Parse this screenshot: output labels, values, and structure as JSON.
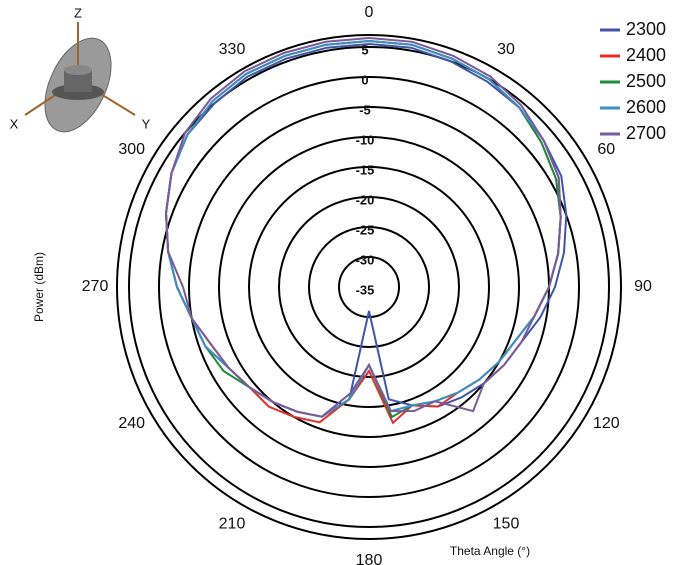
{
  "chart_data": {
    "type": "polar",
    "rlabel": "Power (dBm)",
    "thetalabel": "Theta Angle (°)",
    "inset_labels": {
      "x": "X",
      "y": "Y",
      "z": "Z"
    },
    "theta": [
      0,
      10,
      20,
      30,
      40,
      50,
      60,
      70,
      80,
      90,
      100,
      110,
      120,
      130,
      140,
      150,
      160,
      170,
      180,
      190,
      200,
      210,
      220,
      230,
      240,
      250,
      260,
      270,
      280,
      290,
      300,
      310,
      320,
      330,
      340,
      350
    ],
    "theta_direction": "clockwise",
    "theta_zero": "top",
    "thetaticks": [
      0,
      30,
      60,
      90,
      120,
      150,
      180,
      210,
      240,
      270,
      300,
      330
    ],
    "rlim": [
      -35,
      7
    ],
    "rticks": [
      -35,
      -30,
      -25,
      -20,
      -15,
      -10,
      -5,
      0,
      5
    ],
    "grid": true,
    "legend": "upper right",
    "series": [
      {
        "name": "2300",
        "color": "#3f56a8",
        "values": [
          5.5,
          5.5,
          5,
          4.5,
          4,
          3,
          2,
          0,
          -2,
          -4,
          -6,
          -8,
          -9,
          -10,
          -11,
          -12,
          -14,
          -16,
          -31,
          -16,
          -12,
          -11,
          -10,
          -9,
          -8,
          -6,
          -5,
          -3,
          -1,
          1,
          3,
          4.5,
          5,
          5.5,
          5.5,
          5.5
        ]
      },
      {
        "name": "2400",
        "color": "#e0312b",
        "values": [
          6,
          6,
          5.5,
          5,
          4,
          2.5,
          1,
          -1,
          -3,
          -5,
          -7,
          -9,
          -10,
          -11,
          -12,
          -12,
          -14,
          -12,
          -21,
          -16,
          -11,
          -10,
          -9,
          -9,
          -8,
          -7,
          -5,
          -3,
          -1,
          1,
          3,
          4.5,
          5.5,
          6,
          6,
          6
        ]
      },
      {
        "name": "2500",
        "color": "#1f8a3c",
        "values": [
          6,
          6,
          5.5,
          5,
          4,
          2.5,
          1,
          -1,
          -3,
          -5,
          -7,
          -9,
          -10,
          -11,
          -12,
          -13,
          -14,
          -13,
          -22,
          -16,
          -12,
          -11,
          -10,
          -9,
          -7,
          -6,
          -5,
          -3,
          -1,
          1,
          3,
          4.5,
          5.5,
          6,
          6,
          6
        ]
      },
      {
        "name": "2600",
        "color": "#3d8fc5",
        "values": [
          6,
          6,
          5.5,
          5,
          4,
          3,
          1.5,
          -1,
          -3,
          -5,
          -7,
          -9,
          -10,
          -11,
          -12,
          -13,
          -14,
          -14,
          -22,
          -16,
          -12,
          -11,
          -10,
          -9,
          -8,
          -6,
          -5,
          -3,
          -1,
          1,
          3,
          4.5,
          5.5,
          6,
          6,
          6
        ]
      },
      {
        "name": "2700",
        "color": "#7a5a9a",
        "values": [
          6.5,
          6.5,
          6,
          5.5,
          4.5,
          3,
          1.5,
          -1,
          -3,
          -5,
          -7,
          -8,
          -9,
          -10,
          -8,
          -13,
          -13,
          -14,
          -22,
          -17,
          -12,
          -11,
          -10,
          -9,
          -8,
          -7,
          -5,
          -4,
          -1,
          1,
          3,
          5,
          6,
          6.5,
          6.5,
          6.5
        ]
      }
    ]
  }
}
